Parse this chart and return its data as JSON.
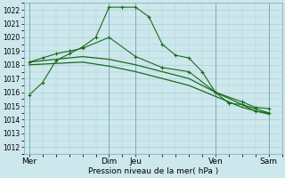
{
  "xlabel": "Pression niveau de la mer( hPa )",
  "bg_color": "#cde8ec",
  "grid_color": "#aacdd4",
  "line_color": "#1a6b1a",
  "ylim": [
    1011.5,
    1022.5
  ],
  "yticks": [
    1012,
    1013,
    1014,
    1015,
    1016,
    1017,
    1018,
    1019,
    1020,
    1021,
    1022
  ],
  "xtick_labels": [
    "Mer",
    "Dim",
    "Jeu",
    "Ven",
    "Sam"
  ],
  "xtick_positions": [
    0,
    3,
    4,
    7,
    9
  ],
  "xlim": [
    -0.2,
    9.5
  ],
  "vline_positions": [
    0,
    3,
    4,
    7,
    9
  ],
  "lines": [
    {
      "x": [
        0,
        0.5,
        1.0,
        1.5,
        2.0,
        2.5,
        3.0,
        3.5,
        4.0,
        4.5,
        5.0,
        5.5,
        6.0,
        6.5,
        7.0,
        7.5,
        8.0,
        8.5,
        9.0
      ],
      "y": [
        1015.8,
        1016.7,
        1018.3,
        1018.8,
        1019.3,
        1020.0,
        1022.2,
        1022.2,
        1022.2,
        1021.5,
        1019.5,
        1018.7,
        1018.5,
        1017.5,
        1016.0,
        1015.2,
        1015.1,
        1014.6,
        1014.5
      ],
      "marker": true,
      "lw": 0.8
    },
    {
      "x": [
        0,
        0.5,
        1.0,
        1.5,
        2.0,
        3.0,
        4.0,
        5.0,
        6.0,
        7.0,
        8.0,
        8.5,
        9.0
      ],
      "y": [
        1018.2,
        1018.5,
        1018.8,
        1019.0,
        1019.2,
        1020.0,
        1018.6,
        1017.8,
        1017.5,
        1016.0,
        1015.3,
        1014.9,
        1014.8
      ],
      "marker": true,
      "lw": 0.8
    },
    {
      "x": [
        0,
        1.0,
        2.0,
        3.0,
        4.0,
        5.0,
        6.0,
        7.0,
        8.0,
        9.0
      ],
      "y": [
        1018.2,
        1018.4,
        1018.6,
        1018.4,
        1018.0,
        1017.5,
        1017.0,
        1016.0,
        1015.1,
        1014.5
      ],
      "marker": false,
      "lw": 0.9
    },
    {
      "x": [
        0,
        1.0,
        2.0,
        3.0,
        4.0,
        5.0,
        6.0,
        7.0,
        8.0,
        9.0
      ],
      "y": [
        1018.0,
        1018.1,
        1018.2,
        1017.9,
        1017.5,
        1017.0,
        1016.5,
        1015.7,
        1014.9,
        1014.4
      ],
      "marker": false,
      "lw": 0.9
    }
  ]
}
